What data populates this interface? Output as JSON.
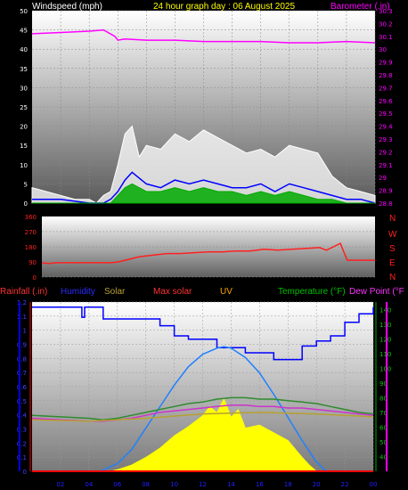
{
  "header": {
    "left": "Windspeed (mph)",
    "center": "24 hour graph day : 06 August 2025",
    "right": "Barometer (.in)"
  },
  "panel3": {
    "rainfall": "Rainfall (.in)",
    "humidity": "Humidity",
    "solar": "Solar",
    "maxsolar": "Max solar",
    "uv": "UV",
    "temperature": "Temperature (°F)",
    "dewpoint": "Dew Point (°F"
  },
  "compass": [
    "N",
    "W",
    "S",
    "E",
    "N"
  ],
  "colors": {
    "wind_gust": "#ffffff",
    "wind_avg": "#0000ff",
    "wind_green": "#00aa00",
    "barometer": "#ff00ff",
    "direction": "#ff2020",
    "humidity": "#0000ff",
    "solar": "#ffff00",
    "maxsolar": "#2080ff",
    "uv": "#ff0000",
    "temperature": "#2e8b2e",
    "dewpoint": "#cc33cc",
    "rain_axis": "#ff3333",
    "temp_axis": "#00cc00"
  },
  "chart_data": [
    {
      "type": "line",
      "title": "24 hour graph day : 06 August 2025",
      "ylabel": "Windspeed (mph)",
      "y2label": "Barometer (.in)",
      "ylim": [
        0,
        50
      ],
      "y2lim": [
        28.8,
        30.3
      ],
      "yticks": [
        "0",
        "5",
        "10",
        "15",
        "20",
        "25",
        "30",
        "35",
        "40",
        "45",
        "50"
      ],
      "y2ticks": [
        "28.8",
        "28.9",
        "29",
        "29.1",
        "29.2",
        "29.3",
        "29.4",
        "29.5",
        "29.6",
        "29.7",
        "29.8",
        "29.9",
        "30",
        "30.1",
        "30.2",
        "30.3"
      ],
      "xticks": [
        "02",
        "04",
        "06",
        "08",
        "10",
        "12",
        "14",
        "16",
        "18",
        "20",
        "22",
        "00"
      ],
      "series": [
        {
          "name": "Barometer",
          "axis": "right",
          "x": [
            0,
            2,
            4,
            5,
            5.8,
            6,
            6.5,
            8,
            10,
            12,
            14,
            16,
            18,
            19,
            20,
            22,
            24
          ],
          "values": [
            30.12,
            30.13,
            30.14,
            30.15,
            30.1,
            30.07,
            30.08,
            30.07,
            30.07,
            30.06,
            30.06,
            30.06,
            30.05,
            30.05,
            30.05,
            30.06,
            30.05
          ]
        },
        {
          "name": "Gust",
          "axis": "left",
          "x": [
            0,
            1,
            2,
            3,
            4,
            4.5,
            5,
            5.5,
            6,
            6.5,
            7,
            7.5,
            8,
            9,
            10,
            11,
            12,
            13,
            14,
            15,
            16,
            17,
            18,
            19,
            20,
            21,
            22,
            23,
            24
          ],
          "values": [
            4,
            3,
            2,
            1,
            1,
            0,
            2,
            3,
            10,
            18,
            20,
            12,
            15,
            14,
            18,
            16,
            19,
            17,
            15,
            13,
            14,
            12,
            15,
            14,
            13,
            7,
            4,
            3,
            2
          ]
        },
        {
          "name": "Average",
          "axis": "left",
          "x": [
            0,
            2,
            4,
            5,
            5.5,
            6,
            6.5,
            7,
            8,
            9,
            10,
            11,
            12,
            13,
            14,
            15,
            16,
            17,
            18,
            19,
            20,
            21,
            22,
            23,
            24
          ],
          "values": [
            1,
            1,
            0,
            0,
            1,
            3,
            6,
            8,
            5,
            4,
            6,
            5,
            6,
            5,
            4,
            4,
            5,
            3,
            5,
            4,
            3,
            2,
            1,
            1,
            0
          ]
        },
        {
          "name": "Green",
          "axis": "left",
          "x": [
            0,
            2,
            4,
            5,
            5.5,
            6,
            6.5,
            7,
            8,
            9,
            10,
            11,
            12,
            13,
            14,
            15,
            16,
            17,
            18,
            19,
            20,
            21,
            22,
            23,
            24
          ],
          "values": [
            0,
            0,
            0,
            0,
            0,
            2,
            4,
            5,
            3,
            3,
            4,
            3,
            4,
            3,
            3,
            2,
            3,
            2,
            3,
            2,
            1,
            1,
            0,
            0,
            0
          ]
        }
      ]
    },
    {
      "type": "line",
      "ylabel": "Wind direction",
      "ylim": [
        0,
        360
      ],
      "yticks": [
        "0",
        "90",
        "180",
        "270",
        "360"
      ],
      "series": [
        {
          "name": "Direction",
          "x": [
            0,
            0.5,
            1,
            2,
            3,
            4,
            5,
            5.5,
            6,
            7,
            8,
            9,
            10,
            11,
            12,
            13,
            14,
            15,
            16,
            17,
            18,
            19,
            20,
            20.5,
            21,
            21.5,
            22,
            23,
            24
          ],
          "values": [
            85,
            80,
            85,
            85,
            85,
            85,
            85,
            90,
            100,
            120,
            130,
            140,
            140,
            145,
            150,
            150,
            155,
            155,
            165,
            160,
            165,
            170,
            175,
            160,
            180,
            200,
            100,
            100,
            100
          ]
        }
      ]
    },
    {
      "type": "line",
      "ylabel": "Rainfall (.in)",
      "ylim": [
        0,
        1.2
      ],
      "yticks": [
        "0",
        "0.1",
        "0.2",
        "0.3",
        "0.4",
        "0.5",
        "0.6",
        "0.7",
        "0.8",
        "0.9",
        "1",
        "1.1",
        "1.2"
      ],
      "y2label": "Temperature (°F)",
      "y2lim": [
        30,
        145
      ],
      "y2ticks": [
        "40",
        "50",
        "60",
        "70",
        "80",
        "90",
        "100",
        "110",
        "120",
        "130",
        "140"
      ],
      "series": [
        {
          "name": "Humidity (%)",
          "axis": "humidity",
          "ylim": [
            0,
            100
          ],
          "x": [
            0,
            2,
            3,
            3.5,
            3.7,
            4.5,
            5,
            6,
            7,
            8,
            9,
            10,
            11,
            12,
            13,
            14,
            15,
            16,
            17,
            18,
            19,
            20,
            21,
            22,
            23,
            24
          ],
          "values": [
            97,
            97,
            97,
            91,
            97,
            97,
            90,
            90,
            90,
            90,
            86,
            80,
            78,
            78,
            73,
            73,
            70,
            70,
            66,
            66,
            74,
            77,
            80,
            88,
            93,
            97
          ]
        },
        {
          "name": "Max solar (W/m²)",
          "axis": "solar",
          "ylim": [
            0,
            1100
          ],
          "x": [
            4.8,
            6,
            7,
            8,
            9,
            10,
            11,
            12,
            13,
            13.5,
            14,
            15,
            16,
            17,
            18,
            19,
            20,
            20.7
          ],
          "values": [
            0,
            50,
            140,
            280,
            420,
            560,
            680,
            760,
            800,
            810,
            800,
            740,
            640,
            500,
            350,
            200,
            60,
            0
          ]
        },
        {
          "name": "Solar (W/m²)",
          "axis": "solar",
          "ylim": [
            0,
            1100
          ],
          "x": [
            5.5,
            6,
            7,
            8,
            9,
            10,
            11,
            12,
            12.5,
            13,
            13.5,
            14,
            14.5,
            15,
            16,
            17,
            18,
            19,
            19.5,
            20
          ],
          "values": [
            0,
            10,
            40,
            90,
            150,
            230,
            290,
            360,
            420,
            380,
            470,
            350,
            400,
            280,
            300,
            250,
            200,
            90,
            40,
            0
          ]
        },
        {
          "name": "Temperature (°F)",
          "axis": "right",
          "x": [
            0,
            2,
            4,
            5,
            6,
            7,
            8,
            9,
            10,
            11,
            12,
            13,
            14,
            15,
            16,
            17,
            18,
            19,
            20,
            21,
            22,
            23,
            24
          ],
          "values": [
            68,
            67,
            66,
            65,
            66,
            68,
            70,
            72,
            74,
            76,
            77,
            79,
            80,
            80,
            79,
            79,
            78,
            77,
            76,
            74,
            72,
            70,
            69
          ]
        },
        {
          "name": "Dew Point (°F)",
          "axis": "right",
          "x": [
            0,
            2,
            4,
            5,
            6,
            7,
            8,
            9,
            10,
            11,
            12,
            13,
            14,
            15,
            16,
            17,
            18,
            19,
            20,
            21,
            22,
            23,
            24
          ],
          "values": [
            66,
            65,
            64,
            64,
            65,
            66,
            68,
            70,
            71,
            72,
            73,
            74,
            75,
            75,
            74,
            74,
            73,
            73,
            72,
            71,
            70,
            69,
            68
          ]
        },
        {
          "name": "Temperature inner (°F)",
          "axis": "right",
          "x": [
            0,
            4,
            8,
            12,
            16,
            20,
            24
          ],
          "values": [
            65,
            64,
            66,
            69,
            70,
            69,
            67
          ]
        },
        {
          "name": "UV",
          "axis": "left",
          "x": [
            0,
            6,
            8,
            12,
            16,
            20,
            24
          ],
          "values": [
            0,
            0,
            0,
            0,
            0,
            0,
            0
          ]
        },
        {
          "name": "Rainfall",
          "axis": "left",
          "x": [
            0,
            24
          ],
          "values": [
            0,
            0
          ]
        }
      ],
      "xticks": [
        "02",
        "04",
        "06",
        "08",
        "10",
        "12",
        "14",
        "16",
        "18",
        "20",
        "22",
        "00"
      ]
    }
  ]
}
